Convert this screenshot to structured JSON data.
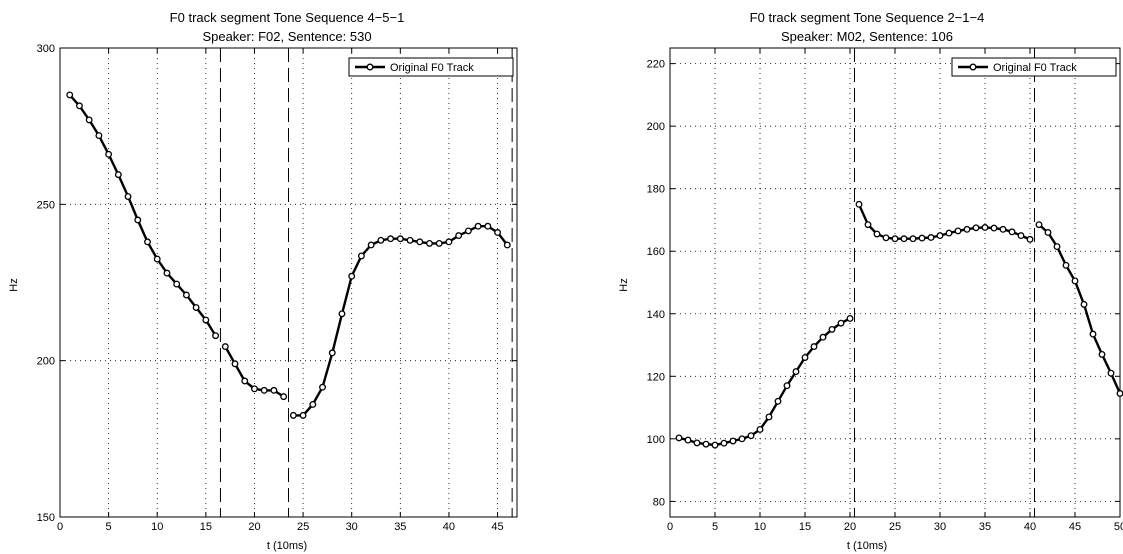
{
  "chart_data": [
    {
      "type": "line",
      "title": "F0 track segment Tone Sequence 4−5−1",
      "subtitle": "Speaker: F02, Sentence: 530",
      "xlabel": "t (10ms)",
      "ylabel": "Hz",
      "xlim": [
        0,
        47
      ],
      "ylim": [
        150,
        300
      ],
      "xticks": [
        0,
        5,
        10,
        15,
        20,
        25,
        30,
        35,
        40,
        45
      ],
      "yticks": [
        150,
        200,
        250,
        300
      ],
      "grid": true,
      "legend_position": "top-right",
      "boundaries": [
        16.5,
        23.5,
        46.5
      ],
      "series": [
        {
          "name": "Original F0 Track",
          "segments": [
            [
              [
                1,
                285
              ],
              [
                2,
                281.5
              ],
              [
                3,
                277
              ],
              [
                4,
                272
              ],
              [
                5,
                266
              ],
              [
                6,
                259.5
              ],
              [
                7,
                252.5
              ],
              [
                8,
                245
              ],
              [
                9,
                238
              ],
              [
                10,
                232.5
              ],
              [
                11,
                228
              ],
              [
                12,
                224.5
              ],
              [
                13,
                221
              ],
              [
                14,
                217
              ],
              [
                15,
                213
              ],
              [
                16,
                208
              ]
            ],
            [
              [
                17,
                204.5
              ],
              [
                18,
                199
              ],
              [
                19,
                193.5
              ],
              [
                20,
                191
              ],
              [
                21,
                190.5
              ],
              [
                22,
                190.5
              ],
              [
                23,
                188.5
              ]
            ],
            [
              [
                24,
                182.5
              ],
              [
                25,
                182.5
              ],
              [
                26,
                186
              ],
              [
                27,
                191.5
              ],
              [
                28,
                202.5
              ],
              [
                29,
                215
              ],
              [
                30,
                227
              ],
              [
                31,
                233.5
              ],
              [
                32,
                237
              ],
              [
                33,
                238.5
              ],
              [
                34,
                239
              ],
              [
                35,
                239
              ],
              [
                36,
                238.5
              ],
              [
                37,
                238
              ],
              [
                38,
                237.5
              ],
              [
                39,
                237.5
              ],
              [
                40,
                238
              ],
              [
                41,
                240
              ],
              [
                42,
                241.5
              ],
              [
                43,
                243
              ],
              [
                44,
                243
              ],
              [
                45,
                241
              ],
              [
                46,
                237
              ]
            ]
          ]
        }
      ]
    },
    {
      "type": "line",
      "title": "F0 track segment Tone Sequence 2−1−4",
      "subtitle": "Speaker: M02, Sentence: 106",
      "xlabel": "t (10ms)",
      "ylabel": "Hz",
      "xlim": [
        0,
        50
      ],
      "ylim": [
        75,
        225
      ],
      "xticks": [
        0,
        5,
        10,
        15,
        20,
        25,
        30,
        35,
        40,
        45,
        50
      ],
      "yticks": [
        80,
        100,
        120,
        140,
        160,
        180,
        200,
        220
      ],
      "grid": true,
      "legend_position": "top-right",
      "boundaries": [
        20.5,
        40.5
      ],
      "series": [
        {
          "name": "Original F0 Track",
          "segments": [
            [
              [
                1,
                100.3
              ],
              [
                2,
                99.6
              ],
              [
                3,
                98.7
              ],
              [
                4,
                98.3
              ],
              [
                5,
                98
              ],
              [
                6,
                98.6
              ],
              [
                7,
                99.3
              ],
              [
                8,
                100
              ],
              [
                9,
                101
              ],
              [
                10,
                103
              ],
              [
                11,
                107
              ],
              [
                12,
                112
              ],
              [
                13,
                117
              ],
              [
                14,
                121.5
              ],
              [
                15,
                126
              ],
              [
                16,
                129.5
              ],
              [
                17,
                132.5
              ],
              [
                18,
                135
              ],
              [
                19,
                137
              ],
              [
                20,
                138.5
              ]
            ],
            [
              [
                21,
                175
              ],
              [
                22,
                168.5
              ],
              [
                23,
                165.5
              ],
              [
                24,
                164.3
              ],
              [
                25,
                164
              ],
              [
                26,
                164
              ],
              [
                27,
                164
              ],
              [
                28,
                164.2
              ],
              [
                29,
                164.4
              ],
              [
                30,
                165
              ],
              [
                31,
                165.8
              ],
              [
                32,
                166.5
              ],
              [
                33,
                167
              ],
              [
                34,
                167.5
              ],
              [
                35,
                167.6
              ],
              [
                36,
                167.4
              ],
              [
                37,
                167
              ],
              [
                38,
                166.2
              ],
              [
                39,
                165
              ],
              [
                40,
                163.8
              ]
            ],
            [
              [
                41,
                168.5
              ],
              [
                42,
                166
              ],
              [
                43,
                161.5
              ],
              [
                44,
                155.5
              ],
              [
                45,
                150.5
              ],
              [
                46,
                143
              ],
              [
                47,
                133.5
              ],
              [
                48,
                127
              ],
              [
                49,
                121
              ],
              [
                50,
                114.5
              ]
            ]
          ]
        }
      ]
    }
  ]
}
